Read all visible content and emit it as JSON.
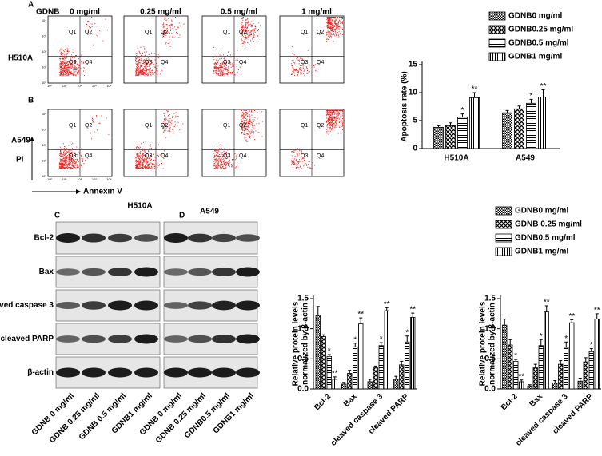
{
  "panel_labels": [
    "A",
    "B",
    "C",
    "D"
  ],
  "flow": {
    "header": "GDNB",
    "doses": [
      "0 mg/ml",
      "0.25 mg/ml",
      "0.5 mg/ml",
      "1 mg/ml"
    ],
    "rows": [
      "H510A",
      "A549"
    ],
    "quadrants": [
      "Q1",
      "Q2",
      "Q3",
      "Q4"
    ],
    "ticks": [
      "10⁰",
      "10¹",
      "10²",
      "10³",
      "10⁴"
    ],
    "ylabel": "PI",
    "xlabel": "Annexin V"
  },
  "blot": {
    "titles": [
      "H510A",
      "A549"
    ],
    "proteins": [
      "Bcl-2",
      "Bax",
      "cleaved caspase 3",
      "cleaved PARP",
      "β-actin"
    ],
    "lanes": [
      [
        "GDNB 0 mg/ml",
        "GDNB 0.25 mg/ml",
        "GDNB  0.5 mg/ml",
        "GDNB1 mg/ml"
      ],
      [
        "GDNB 0 mg/ml",
        "GDNB 0.25 mg/ml",
        "GDNB0.5 mg/ml",
        "GDNB1 mg/ml"
      ]
    ]
  },
  "chart_data": [
    {
      "type": "bar",
      "ylabel": [
        "Apoptosis rate (%)"
      ],
      "categories": [
        "H510A",
        "A549"
      ],
      "ylim": [
        0,
        15
      ],
      "yticks": [
        0,
        5,
        10,
        15
      ],
      "series": [
        {
          "name": "GDNB0 mg/ml",
          "color": "#000000",
          "pattern": "checker",
          "values": [
            3.8,
            6.4
          ],
          "errors": [
            0.3,
            0.4
          ]
        },
        {
          "name": "GDNB0.25 mg/ml",
          "color": "#000000",
          "pattern": "cross",
          "values": [
            4.1,
            7.1
          ],
          "errors": [
            0.5,
            0.5
          ]
        },
        {
          "name": "GDNB0.5 mg/ml",
          "color": "#000000",
          "pattern": "hlines",
          "values": [
            5.6,
            8.1
          ],
          "errors": [
            0.6,
            0.7
          ],
          "significance": [
            "*",
            "*"
          ]
        },
        {
          "name": "GDNB1 mg/ml",
          "color": "#000000",
          "pattern": "vlines",
          "values": [
            9.1,
            9.2
          ],
          "errors": [
            0.9,
            1.3
          ],
          "significance": [
            "**",
            "**"
          ]
        }
      ]
    },
    {
      "type": "bar",
      "ylabel": [
        "Relative protein levels",
        "normalized by β-actin"
      ],
      "categories": [
        "Bcl-2",
        "Bax",
        "cleaved caspase 3",
        "cleaved PARP"
      ],
      "ylim": [
        0,
        1.5
      ],
      "yticks": [
        {
          "value": 0,
          "label": "0.0"
        },
        0.5,
        {
          "value": 1,
          "label": "1.0"
        },
        1.5
      ],
      "series": [
        {
          "name": "GDNB0 mg/ml",
          "color": "#000000",
          "pattern": "checker",
          "values": [
            1.22,
            0.08,
            0.12,
            0.16
          ],
          "errors": [
            0.15,
            0.03,
            0.04,
            0.05
          ]
        },
        {
          "name": "GDNB 0.25 mg/ml",
          "color": "#000000",
          "pattern": "cross",
          "values": [
            0.87,
            0.26,
            0.35,
            0.4
          ],
          "errors": [
            0.03,
            0.05,
            0.03,
            0.06
          ]
        },
        {
          "name": "GDNB0.5 mg/ml",
          "color": "#000000",
          "pattern": "hlines",
          "values": [
            0.54,
            0.7,
            0.72,
            0.78
          ],
          "errors": [
            0.03,
            0.06,
            0.05,
            0.1
          ],
          "significance": [
            "*",
            "*",
            "*",
            "*"
          ]
        },
        {
          "name": "GDNB1 mg/ml",
          "color": "#000000",
          "pattern": "vlines",
          "values": [
            0.16,
            1.08,
            1.3,
            1.19
          ],
          "errors": [
            0.04,
            0.1,
            0.05,
            0.07
          ],
          "significance": [
            "**",
            "**",
            "**",
            "**"
          ]
        }
      ]
    },
    {
      "type": "bar",
      "ylabel": [
        "Relative protein levels",
        "normalized by β-actin"
      ],
      "categories": [
        "Bcl-2",
        "Bax",
        "cleaved caspase 3",
        "cleaved PARP"
      ],
      "ylim": [
        0,
        1.5
      ],
      "yticks": [
        {
          "value": 0,
          "label": "0.0"
        },
        0.5,
        {
          "value": 1,
          "label": "1.0"
        },
        1.5
      ],
      "series": [
        {
          "color": "#000000",
          "pattern": "checker",
          "values": [
            1.06,
            0.05,
            0.1,
            0.13
          ],
          "errors": [
            0.1,
            0.02,
            0.04,
            0.05
          ]
        },
        {
          "color": "#000000",
          "pattern": "cross",
          "values": [
            0.73,
            0.35,
            0.41,
            0.45
          ],
          "errors": [
            0.09,
            0.06,
            0.06,
            0.07
          ]
        },
        {
          "color": "#000000",
          "pattern": "hlines",
          "values": [
            0.46,
            0.72,
            0.69,
            0.62
          ],
          "errors": [
            0.03,
            0.1,
            0.09,
            0.05
          ],
          "significance": [
            "*",
            "*",
            "*",
            "*"
          ]
        },
        {
          "color": "#000000",
          "pattern": "vlines",
          "values": [
            0.12,
            1.28,
            1.1,
            1.16
          ],
          "errors": [
            0.03,
            0.1,
            0.05,
            0.09
          ],
          "significance": [
            "**",
            "**",
            "**",
            "**"
          ]
        }
      ]
    }
  ]
}
